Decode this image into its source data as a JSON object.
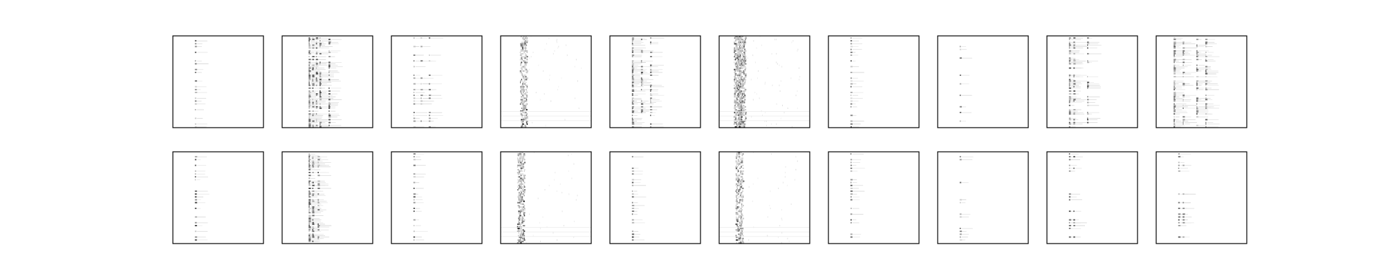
{
  "chart_data": {
    "type": "heatmap",
    "rows": 2,
    "cols": 10,
    "colormap": "gray_r",
    "background": "#ffffff",
    "axes_ticks": "none",
    "title": "",
    "panels": [
      {
        "row": 0,
        "col": 0,
        "pattern": "spikes",
        "columns": [
          0.25
        ],
        "density": 0.6,
        "intensity": 0.7
      },
      {
        "row": 0,
        "col": 1,
        "pattern": "dense-spikes",
        "columns": [
          0.3,
          0.34,
          0.38,
          0.42,
          0.52
        ],
        "density": 0.9,
        "intensity": 0.75
      },
      {
        "row": 0,
        "col": 2,
        "pattern": "spikes",
        "columns": [
          0.25,
          0.33,
          0.42
        ],
        "density": 0.6,
        "intensity": 0.55
      },
      {
        "row": 0,
        "col": 3,
        "pattern": "noise-band",
        "columns": [
          0.25
        ],
        "density": 0.95,
        "intensity": 0.8
      },
      {
        "row": 0,
        "col": 4,
        "pattern": "dense-spikes",
        "columns": [
          0.25,
          0.35,
          0.45
        ],
        "density": 0.8,
        "intensity": 0.7
      },
      {
        "row": 0,
        "col": 5,
        "pattern": "noise-band",
        "columns": [
          0.2,
          0.25
        ],
        "density": 1.0,
        "intensity": 0.85
      },
      {
        "row": 0,
        "col": 6,
        "pattern": "spikes",
        "columns": [
          0.25
        ],
        "density": 0.7,
        "intensity": 0.6
      },
      {
        "row": 0,
        "col": 7,
        "pattern": "spikes",
        "columns": [
          0.25
        ],
        "density": 0.35,
        "intensity": 0.6
      },
      {
        "row": 0,
        "col": 8,
        "pattern": "dense-spikes",
        "columns": [
          0.25,
          0.3,
          0.45
        ],
        "density": 0.75,
        "intensity": 0.7
      },
      {
        "row": 0,
        "col": 9,
        "pattern": "dense-spikes",
        "columns": [
          0.2,
          0.3,
          0.45,
          0.55
        ],
        "density": 0.85,
        "intensity": 0.65
      },
      {
        "row": 1,
        "col": 0,
        "pattern": "spikes",
        "columns": [
          0.25
        ],
        "density": 0.55,
        "intensity": 0.75
      },
      {
        "row": 1,
        "col": 1,
        "pattern": "dense-spikes",
        "columns": [
          0.3,
          0.34,
          0.4
        ],
        "density": 0.85,
        "intensity": 0.75
      },
      {
        "row": 1,
        "col": 2,
        "pattern": "spikes",
        "columns": [
          0.25
        ],
        "density": 0.6,
        "intensity": 0.7
      },
      {
        "row": 1,
        "col": 3,
        "pattern": "noise-band",
        "columns": [
          0.22
        ],
        "density": 0.95,
        "intensity": 0.85
      },
      {
        "row": 1,
        "col": 4,
        "pattern": "spikes",
        "columns": [
          0.25
        ],
        "density": 0.7,
        "intensity": 0.8
      },
      {
        "row": 1,
        "col": 5,
        "pattern": "noise-band",
        "columns": [
          0.22
        ],
        "density": 0.9,
        "intensity": 0.8
      },
      {
        "row": 1,
        "col": 6,
        "pattern": "spikes",
        "columns": [
          0.25
        ],
        "density": 0.7,
        "intensity": 0.7
      },
      {
        "row": 1,
        "col": 7,
        "pattern": "spikes",
        "columns": [
          0.25
        ],
        "density": 0.35,
        "intensity": 0.6
      },
      {
        "row": 1,
        "col": 8,
        "pattern": "spikes",
        "columns": [
          0.25,
          0.3
        ],
        "density": 0.5,
        "intensity": 0.75
      },
      {
        "row": 1,
        "col": 9,
        "pattern": "spikes",
        "columns": [
          0.25,
          0.3
        ],
        "density": 0.45,
        "intensity": 0.7
      }
    ]
  }
}
